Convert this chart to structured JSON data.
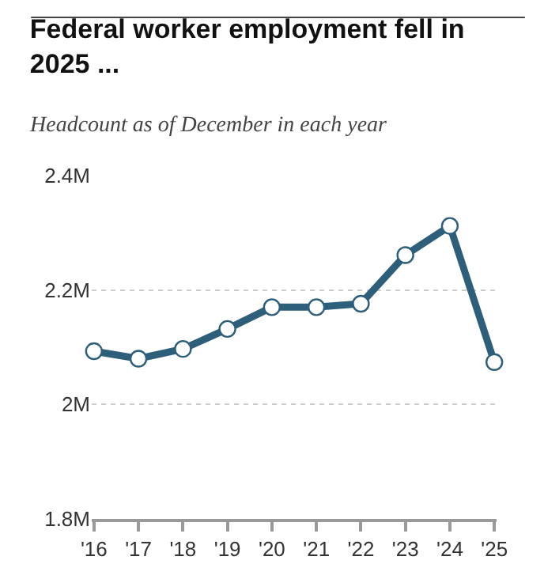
{
  "chart_data": {
    "type": "line",
    "title": "Federal worker employment fell in 2025 ...",
    "subtitle": "Headcount as of December in each year",
    "categories": [
      "'16",
      "'17",
      "'18",
      "'19",
      "'20",
      "'21",
      "'22",
      "'23",
      "'24",
      "'25"
    ],
    "series": [
      {
        "color": "#2e5f7a",
        "values": [
          2.093,
          2.08,
          2.097,
          2.132,
          2.17,
          2.17,
          2.176,
          2.261,
          2.312,
          2.074
        ]
      }
    ],
    "ylim": [
      1.8,
      2.4
    ],
    "yticks": [
      {
        "value": 1.8,
        "label": "1.8M"
      },
      {
        "value": 2.0,
        "label": "2M"
      },
      {
        "value": 2.2,
        "label": "2.2M"
      },
      {
        "value": 2.4,
        "label": "2.4M"
      }
    ],
    "grid": "y",
    "marker": "circle",
    "line_style": "solid"
  }
}
